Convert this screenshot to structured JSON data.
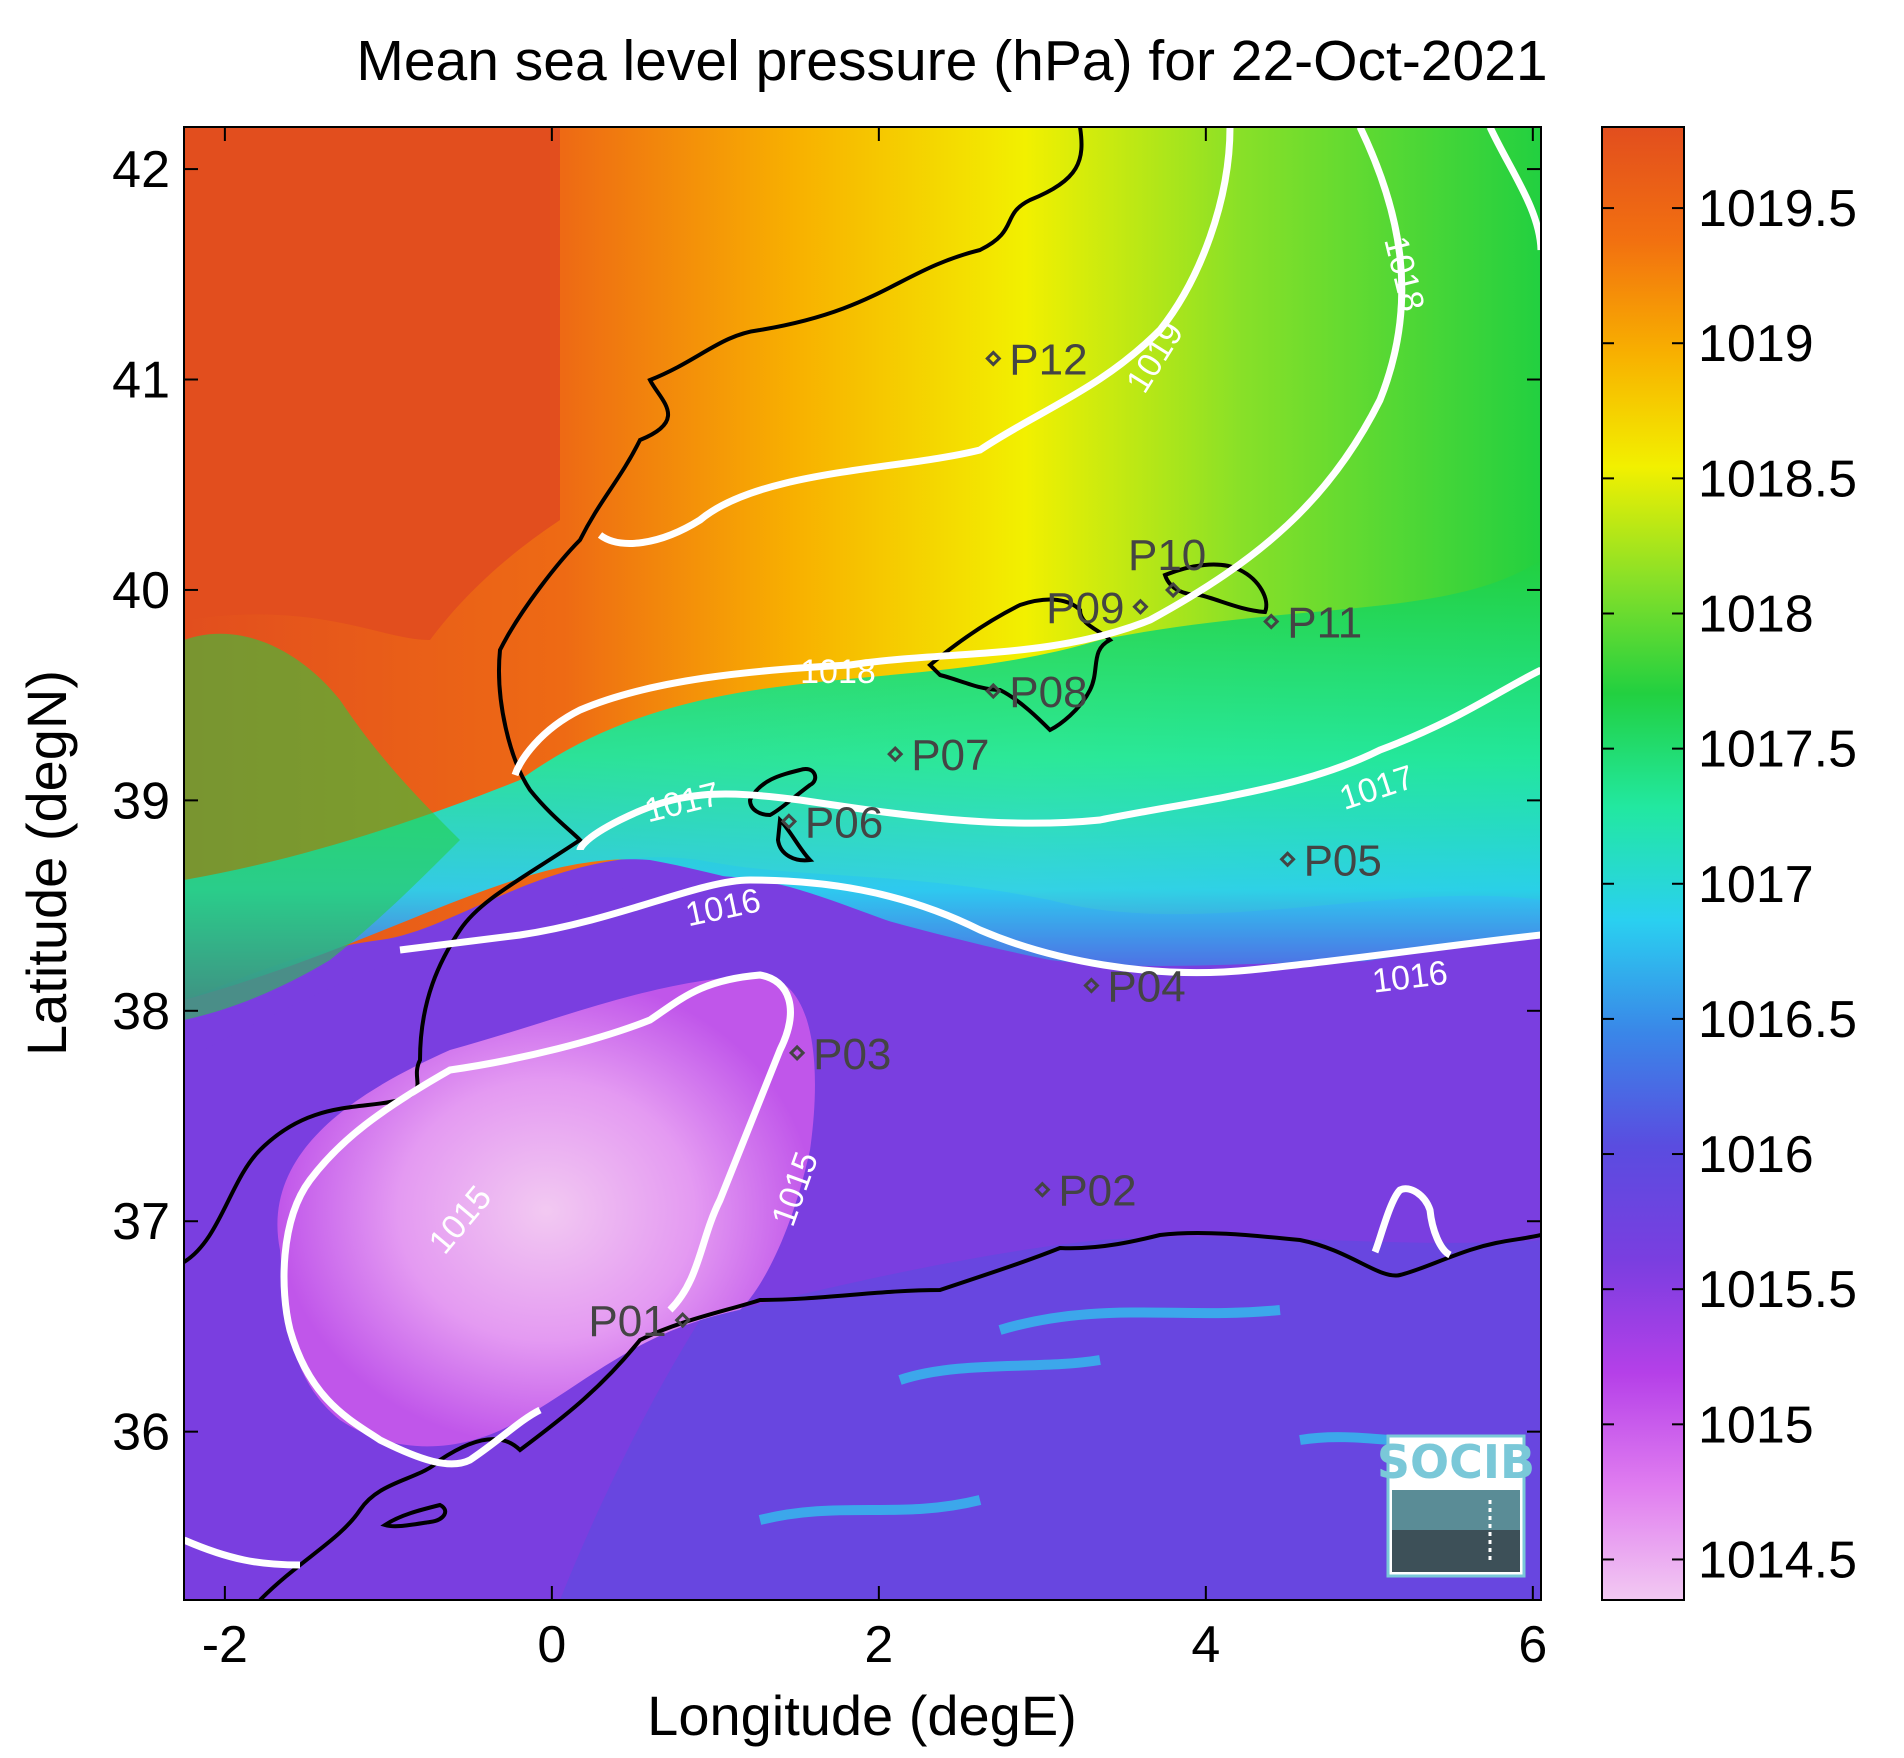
{
  "title": "Mean sea level pressure (hPa) for 22-Oct-2021",
  "x_axis": {
    "label": "Longitude (degE)",
    "range": [
      -2.25,
      6.05
    ],
    "ticks": [
      "-2",
      "0",
      "2",
      "4",
      "6"
    ]
  },
  "y_axis": {
    "label": "Latitude (degN)",
    "range": [
      35.2,
      42.2
    ],
    "ticks": [
      "36",
      "37",
      "38",
      "39",
      "40",
      "41",
      "42"
    ]
  },
  "colorbar": {
    "range": [
      1014.35,
      1019.8
    ],
    "ticks": [
      "1014.5",
      "1015",
      "1015.5",
      "1016",
      "1016.5",
      "1017",
      "1017.5",
      "1018",
      "1018.5",
      "1019",
      "1019.5"
    ],
    "colors": [
      "#f2c9f2",
      "#e07df0",
      "#b540e8",
      "#7a3ee0",
      "#5a4ce0",
      "#3a86e8",
      "#2ad0f0",
      "#22e8a0",
      "#22d040",
      "#88e028",
      "#f2f000",
      "#f8b000",
      "#f27010",
      "#e24e1e"
    ]
  },
  "contour_labels": [
    {
      "text": "1015",
      "lon": -0.55,
      "lat": 37.0,
      "angle": -50
    },
    {
      "text": "1015",
      "lon": 1.5,
      "lat": 37.15,
      "angle": -70
    },
    {
      "text": "1016",
      "lon": 1.05,
      "lat": 38.48,
      "angle": -12
    },
    {
      "text": "1016",
      "lon": 5.25,
      "lat": 38.15,
      "angle": -7
    },
    {
      "text": "1017",
      "lon": 0.8,
      "lat": 38.98,
      "angle": -14
    },
    {
      "text": "1017",
      "lon": 5.05,
      "lat": 39.05,
      "angle": -18
    },
    {
      "text": "1018",
      "lon": 1.75,
      "lat": 39.6,
      "angle": 0
    },
    {
      "text": "1018",
      "lon": 5.2,
      "lat": 41.5,
      "angle": 76
    },
    {
      "text": "1019",
      "lon": 3.7,
      "lat": 41.1,
      "angle": -58
    }
  ],
  "stations": [
    {
      "name": "P01",
      "lon": 0.8,
      "lat": 36.53,
      "side": "left"
    },
    {
      "name": "P02",
      "lon": 3.0,
      "lat": 37.15,
      "side": "right"
    },
    {
      "name": "P03",
      "lon": 1.5,
      "lat": 37.8,
      "side": "right"
    },
    {
      "name": "P04",
      "lon": 3.3,
      "lat": 38.12,
      "side": "right"
    },
    {
      "name": "P05",
      "lon": 4.5,
      "lat": 38.72,
      "side": "right"
    },
    {
      "name": "P06",
      "lon": 1.45,
      "lat": 38.9,
      "side": "right"
    },
    {
      "name": "P07",
      "lon": 2.1,
      "lat": 39.22,
      "side": "right"
    },
    {
      "name": "P08",
      "lon": 2.7,
      "lat": 39.52,
      "side": "right"
    },
    {
      "name": "P09",
      "lon": 3.6,
      "lat": 39.92,
      "side": "left"
    },
    {
      "name": "P10",
      "lon": 3.8,
      "lat": 40.0,
      "side": "top"
    },
    {
      "name": "P11",
      "lon": 4.4,
      "lat": 39.85,
      "side": "right"
    },
    {
      "name": "P12",
      "lon": 2.7,
      "lat": 41.1,
      "side": "right"
    }
  ],
  "logo": {
    "text": "SOCIB"
  }
}
